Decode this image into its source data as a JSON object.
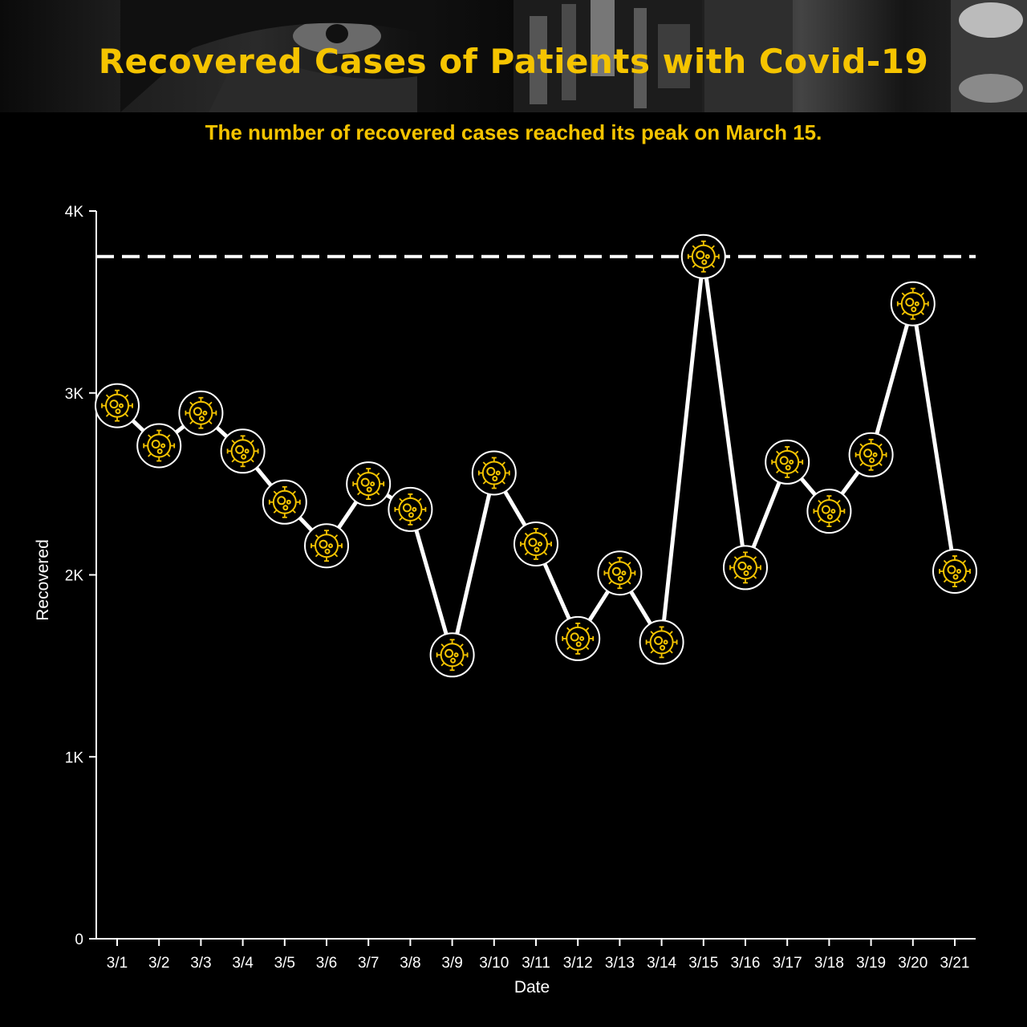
{
  "header": {
    "title": "Recovered Cases of Patients with Covid-19",
    "subtitle": "The number of recovered cases reached its peak on March 15."
  },
  "colors": {
    "background": "#000000",
    "accent": "#f5c400",
    "line": "#ffffff"
  },
  "chart_data": {
    "type": "line",
    "title": "Recovered Cases of Patients with Covid-19",
    "subtitle": "The number of recovered cases reached its peak on March 15.",
    "xlabel": "Date",
    "ylabel": "Recovered",
    "categories": [
      "3/1",
      "3/2",
      "3/3",
      "3/4",
      "3/5",
      "3/6",
      "3/7",
      "3/8",
      "3/9",
      "3/10",
      "3/11",
      "3/12",
      "3/13",
      "3/14",
      "3/15",
      "3/16",
      "3/17",
      "3/18",
      "3/19",
      "3/20",
      "3/21"
    ],
    "values": [
      2930,
      2710,
      2890,
      2680,
      2400,
      2160,
      2500,
      2360,
      1560,
      2560,
      2170,
      1650,
      2010,
      1630,
      3750,
      2040,
      2620,
      2350,
      2660,
      3490,
      2020
    ],
    "ylim": [
      0,
      4000
    ],
    "yticks": [
      {
        "value": 0,
        "label": "0"
      },
      {
        "value": 1000,
        "label": "1K"
      },
      {
        "value": 2000,
        "label": "2K"
      },
      {
        "value": 3000,
        "label": "3K"
      },
      {
        "value": 4000,
        "label": "4K"
      }
    ],
    "reference_line": {
      "value": 3750,
      "style": "dashed"
    },
    "marker": "virus-icon",
    "grid": false,
    "legend": "none"
  }
}
